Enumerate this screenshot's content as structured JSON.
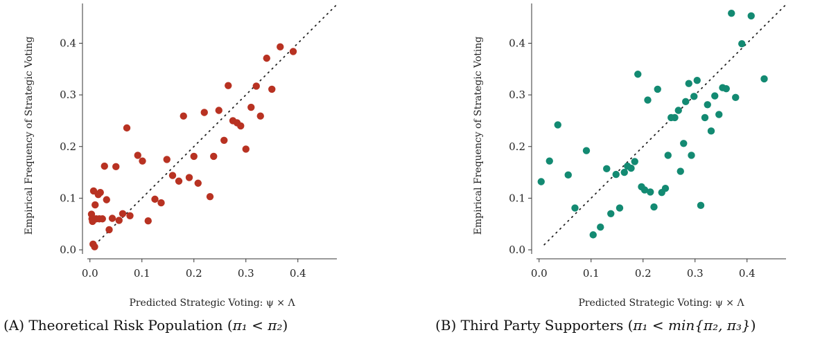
{
  "chart_data": [
    {
      "type": "scatter",
      "xlabel": "Predicted Strategic Voting: ψ × Λ",
      "ylabel": "Empirical Frequency of Strategic Voting",
      "caption_tag": "(A)",
      "caption_text": "Theoretical Risk Population (",
      "caption_math": "π₁ < π₂",
      "caption_close": ")",
      "xlim": [
        -0.005,
        0.475
      ],
      "ylim": [
        -0.008,
        0.477
      ],
      "xticks": [
        0.0,
        0.1,
        0.2,
        0.3,
        0.4
      ],
      "xtick_labels": [
        "0.0",
        "0.1",
        "0.2",
        "0.3",
        "0.4"
      ],
      "yticks": [
        0.0,
        0.1,
        0.2,
        0.3,
        0.4
      ],
      "ytick_labels": [
        "0.0",
        "0.1",
        "0.2",
        "0.3",
        "0.4"
      ],
      "reference_line": "y = x (dotted)",
      "color": "#b83222",
      "points": [
        [
          0.003,
          0.069
        ],
        [
          0.004,
          0.06
        ],
        [
          0.005,
          0.055
        ],
        [
          0.006,
          0.011
        ],
        [
          0.007,
          0.114
        ],
        [
          0.009,
          0.006
        ],
        [
          0.01,
          0.087
        ],
        [
          0.012,
          0.06
        ],
        [
          0.016,
          0.107
        ],
        [
          0.018,
          0.06
        ],
        [
          0.02,
          0.111
        ],
        [
          0.024,
          0.06
        ],
        [
          0.028,
          0.162
        ],
        [
          0.032,
          0.097
        ],
        [
          0.037,
          0.039
        ],
        [
          0.043,
          0.061
        ],
        [
          0.05,
          0.161
        ],
        [
          0.056,
          0.057
        ],
        [
          0.063,
          0.07
        ],
        [
          0.071,
          0.236
        ],
        [
          0.077,
          0.066
        ],
        [
          0.092,
          0.183
        ],
        [
          0.101,
          0.172
        ],
        [
          0.112,
          0.056
        ],
        [
          0.125,
          0.098
        ],
        [
          0.137,
          0.091
        ],
        [
          0.148,
          0.175
        ],
        [
          0.159,
          0.144
        ],
        [
          0.171,
          0.133
        ],
        [
          0.18,
          0.259
        ],
        [
          0.191,
          0.14
        ],
        [
          0.2,
          0.181
        ],
        [
          0.208,
          0.129
        ],
        [
          0.22,
          0.266
        ],
        [
          0.231,
          0.103
        ],
        [
          0.238,
          0.181
        ],
        [
          0.248,
          0.27
        ],
        [
          0.258,
          0.212
        ],
        [
          0.266,
          0.318
        ],
        [
          0.275,
          0.25
        ],
        [
          0.283,
          0.246
        ],
        [
          0.29,
          0.24
        ],
        [
          0.3,
          0.195
        ],
        [
          0.31,
          0.276
        ],
        [
          0.32,
          0.317
        ],
        [
          0.328,
          0.259
        ],
        [
          0.34,
          0.371
        ],
        [
          0.35,
          0.311
        ],
        [
          0.366,
          0.393
        ],
        [
          0.391,
          0.384
        ]
      ]
    },
    {
      "type": "scatter",
      "xlabel": "Predicted Strategic Voting: ψ × Λ",
      "ylabel": "Empirical Frequency of Strategic Voting",
      "caption_tag": "(B)",
      "caption_text": "Third Party Supporters (",
      "caption_math": "π₁ < min{π₂, π₃}",
      "caption_close": ")",
      "xlim": [
        -0.005,
        0.475
      ],
      "ylim": [
        -0.008,
        0.477
      ],
      "xticks": [
        0.0,
        0.1,
        0.2,
        0.3,
        0.4
      ],
      "xtick_labels": [
        "0.0",
        "0.1",
        "0.2",
        "0.3",
        "0.4"
      ],
      "yticks": [
        0.0,
        0.1,
        0.2,
        0.3,
        0.4
      ],
      "ytick_labels": [
        "0.0",
        "0.1",
        "0.2",
        "0.3",
        "0.4"
      ],
      "reference_line": "y = x (dotted)",
      "color": "#138a72",
      "points": [
        [
          0.004,
          0.132
        ],
        [
          0.02,
          0.172
        ],
        [
          0.036,
          0.242
        ],
        [
          0.056,
          0.145
        ],
        [
          0.069,
          0.081
        ],
        [
          0.091,
          0.192
        ],
        [
          0.104,
          0.029
        ],
        [
          0.118,
          0.044
        ],
        [
          0.13,
          0.157
        ],
        [
          0.138,
          0.07
        ],
        [
          0.148,
          0.146
        ],
        [
          0.155,
          0.081
        ],
        [
          0.164,
          0.15
        ],
        [
          0.17,
          0.162
        ],
        [
          0.177,
          0.158
        ],
        [
          0.184,
          0.171
        ],
        [
          0.19,
          0.34
        ],
        [
          0.197,
          0.122
        ],
        [
          0.203,
          0.116
        ],
        [
          0.209,
          0.29
        ],
        [
          0.214,
          0.112
        ],
        [
          0.221,
          0.083
        ],
        [
          0.228,
          0.311
        ],
        [
          0.236,
          0.111
        ],
        [
          0.243,
          0.119
        ],
        [
          0.248,
          0.183
        ],
        [
          0.254,
          0.256
        ],
        [
          0.261,
          0.256
        ],
        [
          0.268,
          0.27
        ],
        [
          0.272,
          0.152
        ],
        [
          0.278,
          0.206
        ],
        [
          0.282,
          0.287
        ],
        [
          0.288,
          0.322
        ],
        [
          0.293,
          0.183
        ],
        [
          0.298,
          0.297
        ],
        [
          0.304,
          0.328
        ],
        [
          0.311,
          0.086
        ],
        [
          0.319,
          0.256
        ],
        [
          0.324,
          0.281
        ],
        [
          0.331,
          0.23
        ],
        [
          0.338,
          0.298
        ],
        [
          0.346,
          0.262
        ],
        [
          0.353,
          0.314
        ],
        [
          0.36,
          0.312
        ],
        [
          0.37,
          0.458
        ],
        [
          0.378,
          0.295
        ],
        [
          0.39,
          0.399
        ],
        [
          0.408,
          0.453
        ],
        [
          0.433,
          0.331
        ]
      ]
    }
  ]
}
